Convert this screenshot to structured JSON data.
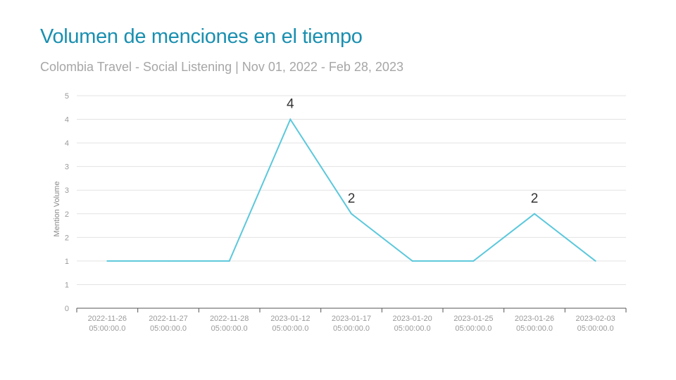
{
  "header": {
    "title": "Volumen de menciones en el tiempo",
    "subtitle": "Colombia Travel - Social Listening | Nov 01, 2022 - Feb 28, 2023"
  },
  "chart_data": {
    "type": "line",
    "ylabel": "Mention Volume",
    "ylim": [
      0,
      5
    ],
    "y_ticks": [
      {
        "value": 0,
        "label": "0"
      },
      {
        "value": 0.5,
        "label": "1"
      },
      {
        "value": 1,
        "label": "1"
      },
      {
        "value": 1.5,
        "label": "2"
      },
      {
        "value": 2,
        "label": "2"
      },
      {
        "value": 2.5,
        "label": "3"
      },
      {
        "value": 3,
        "label": "3"
      },
      {
        "value": 3.5,
        "label": "4"
      },
      {
        "value": 4,
        "label": "4"
      },
      {
        "value": 4.5,
        "label": "5"
      }
    ],
    "categories": [
      {
        "date": "2022-11-26",
        "time": "05:00:00.0"
      },
      {
        "date": "2022-11-27",
        "time": "05:00:00.0"
      },
      {
        "date": "2022-11-28",
        "time": "05:00:00.0"
      },
      {
        "date": "2023-01-12",
        "time": "05:00:00.0"
      },
      {
        "date": "2023-01-17",
        "time": "05:00:00.0"
      },
      {
        "date": "2023-01-20",
        "time": "05:00:00.0"
      },
      {
        "date": "2023-01-25",
        "time": "05:00:00.0"
      },
      {
        "date": "2023-01-26",
        "time": "05:00:00.0"
      },
      {
        "date": "2023-02-03",
        "time": "05:00:00.0"
      }
    ],
    "values": [
      1,
      1,
      1,
      4,
      2,
      1,
      1,
      2,
      1
    ],
    "data_labels": [
      {
        "index": 3,
        "text": "4"
      },
      {
        "index": 4,
        "text": "2"
      },
      {
        "index": 7,
        "text": "2"
      }
    ],
    "line_color": "#5bc8dc",
    "grid": true,
    "legend": "none"
  }
}
